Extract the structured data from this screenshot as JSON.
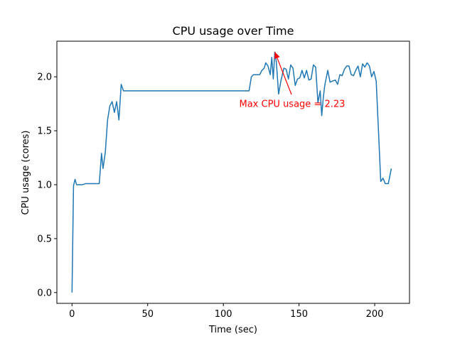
{
  "chart_data": {
    "type": "line",
    "title": "CPU usage over Time",
    "xlabel": "Time (sec)",
    "ylabel": "CPU usage (cores)",
    "xlim": [
      -10,
      223
    ],
    "ylim": [
      -0.1,
      2.33
    ],
    "xticks": [
      0,
      50,
      100,
      150,
      200
    ],
    "xtick_labels": [
      "0",
      "50",
      "100",
      "150",
      "200"
    ],
    "yticks": [
      0.0,
      0.5,
      1.0,
      1.5,
      2.0
    ],
    "ytick_labels": [
      "0.0",
      "0.5",
      "1.0",
      "1.5",
      "2.0"
    ],
    "grid": false,
    "series": [
      {
        "color": "#1f77b4",
        "points": [
          [
            0,
            0.0
          ],
          [
            1,
            0.99
          ],
          [
            2,
            1.05
          ],
          [
            3,
            1.0
          ],
          [
            5,
            1.0
          ],
          [
            7,
            1.0
          ],
          [
            9,
            1.01
          ],
          [
            12,
            1.01
          ],
          [
            15,
            1.01
          ],
          [
            18,
            1.01
          ],
          [
            19.5,
            1.29
          ],
          [
            20.5,
            1.15
          ],
          [
            22,
            1.3
          ],
          [
            23.5,
            1.6
          ],
          [
            25,
            1.73
          ],
          [
            26.5,
            1.77
          ],
          [
            28,
            1.67
          ],
          [
            29.5,
            1.77
          ],
          [
            31,
            1.6
          ],
          [
            32.5,
            1.93
          ],
          [
            34,
            1.87
          ],
          [
            40,
            1.87
          ],
          [
            60,
            1.87
          ],
          [
            80,
            1.87
          ],
          [
            100,
            1.87
          ],
          [
            117,
            1.87
          ],
          [
            118.5,
            2.0
          ],
          [
            120,
            2.02
          ],
          [
            122,
            2.02
          ],
          [
            124,
            2.02
          ],
          [
            125.5,
            2.06
          ],
          [
            127,
            2.08
          ],
          [
            128,
            2.13
          ],
          [
            129.5,
            2.1
          ],
          [
            131,
            2.02
          ],
          [
            132,
            2.18
          ],
          [
            133,
            1.98
          ],
          [
            134,
            2.23
          ],
          [
            135,
            2.14
          ],
          [
            136.5,
            1.84
          ],
          [
            138,
            1.96
          ],
          [
            140,
            2.08
          ],
          [
            141.5,
            2.07
          ],
          [
            143,
            1.98
          ],
          [
            144.5,
            2.11
          ],
          [
            146,
            2.08
          ],
          [
            147.5,
            1.92
          ],
          [
            149,
            1.98
          ],
          [
            150.5,
            1.99
          ],
          [
            152,
            2.06
          ],
          [
            153.5,
            1.99
          ],
          [
            155,
            2.06
          ],
          [
            156.5,
            1.97
          ],
          [
            158,
            1.98
          ],
          [
            159.5,
            2.11
          ],
          [
            161,
            2.09
          ],
          [
            162.5,
            1.76
          ],
          [
            164,
            1.87
          ],
          [
            165,
            1.64
          ],
          [
            166,
            1.8
          ],
          [
            167,
            1.92
          ],
          [
            169,
            2.06
          ],
          [
            170.5,
            1.95
          ],
          [
            172,
            1.96
          ],
          [
            174,
            1.97
          ],
          [
            175.5,
            1.93
          ],
          [
            177,
            2.02
          ],
          [
            178.5,
            2.01
          ],
          [
            180,
            2.07
          ],
          [
            181.5,
            2.1
          ],
          [
            183,
            2.1
          ],
          [
            184.5,
            2.02
          ],
          [
            186,
            2.01
          ],
          [
            187.5,
            2.06
          ],
          [
            189,
            2.1
          ],
          [
            190.5,
            2.0
          ],
          [
            192,
            2.12
          ],
          [
            193.5,
            2.09
          ],
          [
            195,
            2.13
          ],
          [
            196.5,
            2.1
          ],
          [
            198,
            2.0
          ],
          [
            199.5,
            2.05
          ],
          [
            201,
            1.96
          ],
          [
            202.5,
            1.5
          ],
          [
            204,
            1.03
          ],
          [
            205.5,
            1.06
          ],
          [
            207,
            1.01
          ],
          [
            209,
            1.01
          ],
          [
            211,
            1.15
          ]
        ]
      }
    ],
    "annotation": {
      "text": "Max CPU usage = 2.23",
      "color": "#ff0000",
      "point": [
        134,
        2.23
      ],
      "text_anchor_value": [
        110.5,
        1.72
      ]
    }
  }
}
